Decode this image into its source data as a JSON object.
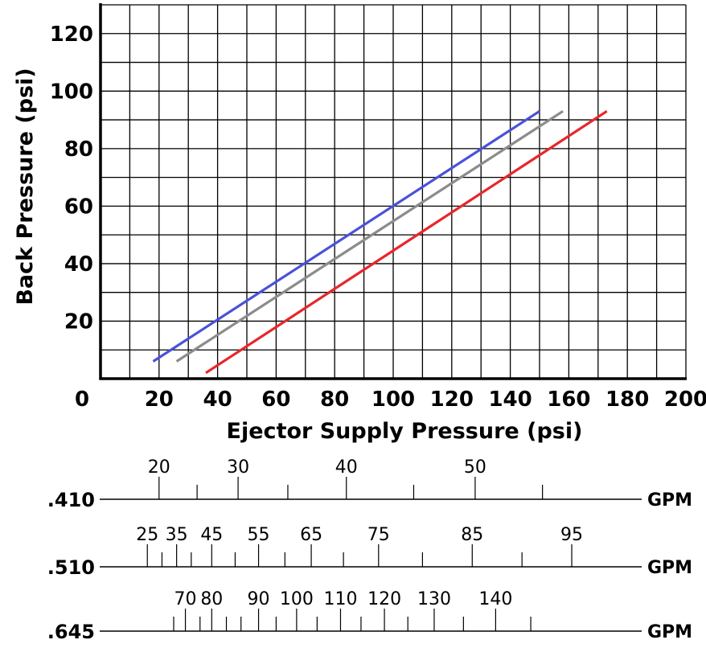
{
  "chart_data": [
    {
      "type": "line",
      "xlabel": "Ejector Supply Pressure (psi)",
      "ylabel": "Back Pressure (psi)",
      "xlim": [
        0,
        200
      ],
      "ylim": [
        0,
        130
      ],
      "x_ticks": [
        "0",
        "20",
        "40",
        "60",
        "80",
        "100",
        "120",
        "140",
        "160",
        "180",
        "200"
      ],
      "y_ticks": [
        "20",
        "40",
        "60",
        "80",
        "100",
        "120"
      ],
      "grid": true,
      "series": [
        {
          "color": "#4a52d8",
          "points": [
            [
              18,
              6
            ],
            [
              150,
              93
            ]
          ]
        },
        {
          "color": "#8c8c8c",
          "points": [
            [
              26,
              6
            ],
            [
              158,
              93
            ]
          ]
        },
        {
          "color": "#e8262c",
          "points": [
            [
              36,
              2
            ],
            [
              173,
              93
            ]
          ]
        }
      ]
    },
    {
      "type": "table",
      "scales": [
        {
          "label": ".410",
          "unit": "GPM",
          "ticks": [
            {
              "x": 20,
              "label": "20"
            },
            {
              "x": 33
            },
            {
              "x": 47,
              "label": "30"
            },
            {
              "x": 64
            },
            {
              "x": 84,
              "label": "40"
            },
            {
              "x": 107
            },
            {
              "x": 128,
              "label": "50"
            },
            {
              "x": 151
            }
          ]
        },
        {
          "label": ".510",
          "unit": "GPM",
          "ticks": [
            {
              "x": 16,
              "label": "25"
            },
            {
              "x": 21
            },
            {
              "x": 26,
              "label": "35"
            },
            {
              "x": 31
            },
            {
              "x": 38,
              "label": "45"
            },
            {
              "x": 46
            },
            {
              "x": 54,
              "label": "55"
            },
            {
              "x": 63
            },
            {
              "x": 72,
              "label": "65"
            },
            {
              "x": 83
            },
            {
              "x": 95,
              "label": "75"
            },
            {
              "x": 110
            },
            {
              "x": 127,
              "label": "85"
            },
            {
              "x": 144
            },
            {
              "x": 161,
              "label": "95"
            }
          ]
        },
        {
          "label": ".645",
          "unit": "GPM",
          "ticks": [
            {
              "x": 25
            },
            {
              "x": 29,
              "label": "70"
            },
            {
              "x": 34
            },
            {
              "x": 38,
              "label": "80"
            },
            {
              "x": 43
            },
            {
              "x": 48
            },
            {
              "x": 54,
              "label": "90"
            },
            {
              "x": 60
            },
            {
              "x": 67,
              "label": "100"
            },
            {
              "x": 74
            },
            {
              "x": 82,
              "label": "110"
            },
            {
              "x": 89
            },
            {
              "x": 97,
              "label": "120"
            },
            {
              "x": 105
            },
            {
              "x": 114,
              "label": "130"
            },
            {
              "x": 124
            },
            {
              "x": 135,
              "label": "140"
            },
            {
              "x": 147
            }
          ]
        }
      ]
    }
  ]
}
